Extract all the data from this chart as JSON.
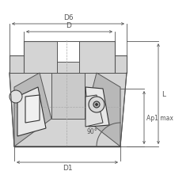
{
  "bg_color": "#ffffff",
  "line_color": "#666666",
  "dark_line": "#333333",
  "dim_color": "#555555",
  "body_fill": "#d4d4d4",
  "body_edge": "#555555",
  "inner_fill": "#c0c0c0",
  "light_fill": "#e8e8e8",
  "labels": {
    "D6": "D6",
    "D": "D",
    "D1": "D1",
    "L": "L",
    "Ap1max": "Ap1 max",
    "angle": "90°"
  },
  "figsize": [
    2.4,
    2.4
  ],
  "dpi": 100
}
